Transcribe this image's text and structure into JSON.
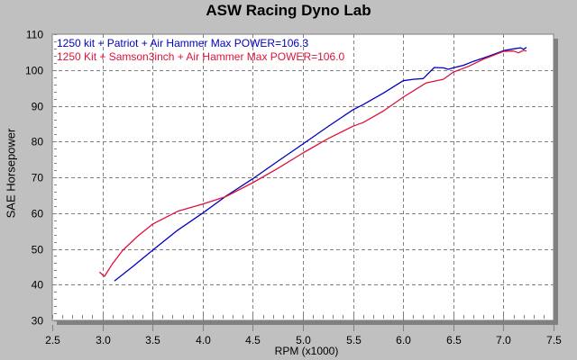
{
  "chart_data": {
    "type": "line",
    "title": "ASW Racing Dyno Lab",
    "xlabel": "RPM (x1000)",
    "ylabel": "SAE Horsepower",
    "xlim": [
      2.5,
      7.5
    ],
    "ylim": [
      30,
      110
    ],
    "xticks": [
      "2.5",
      "3.0",
      "3.5",
      "4.0",
      "4.5",
      "5.0",
      "5.5",
      "6.0",
      "6.5",
      "7.0",
      "7.5"
    ],
    "yticks": [
      "30",
      "40",
      "50",
      "60",
      "70",
      "80",
      "90",
      "100",
      "110"
    ],
    "grid": true,
    "legend_position": "top-left",
    "series": [
      {
        "name": "1250 kit + Patriot + Air Hammer",
        "legend_label": "1250 kit + Patriot + Air Hammer  Max POWER=106.3",
        "max_power": 106.3,
        "color": "#0000c0",
        "x": [
          3.12,
          3.3,
          3.5,
          3.75,
          4.0,
          4.23,
          4.5,
          4.75,
          5.0,
          5.25,
          5.5,
          5.6,
          5.8,
          6.0,
          6.1,
          6.2,
          6.31,
          6.4,
          6.45,
          6.5,
          6.6,
          6.7,
          6.85,
          7.0,
          7.1,
          7.17,
          7.2,
          7.23
        ],
        "y": [
          41.0,
          45.0,
          49.6,
          55.2,
          60.0,
          64.7,
          69.6,
          74.5,
          79.3,
          84.2,
          88.9,
          90.3,
          93.5,
          97.0,
          97.4,
          97.6,
          100.7,
          100.6,
          100.2,
          100.6,
          101.3,
          102.4,
          103.8,
          105.4,
          105.9,
          106.2,
          105.8,
          106.3
        ]
      },
      {
        "name": "1250 Kit + Samson3inch + Air Hammer",
        "legend_label": "1250 Kit + Samson3inch + Air Hammer  Max POWER=106.0",
        "max_power": 106.0,
        "color": "#e0103c",
        "x": [
          2.97,
          3.02,
          3.1,
          3.2,
          3.35,
          3.5,
          3.75,
          4.0,
          4.23,
          4.5,
          4.75,
          5.0,
          5.25,
          5.5,
          5.6,
          5.8,
          6.0,
          6.23,
          6.4,
          6.5,
          6.65,
          6.8,
          7.0,
          7.1,
          7.15,
          7.2,
          7.23
        ],
        "y": [
          43.5,
          42.3,
          45.8,
          49.5,
          53.5,
          56.9,
          60.5,
          62.5,
          64.6,
          68.5,
          72.5,
          76.8,
          80.8,
          84.3,
          85.3,
          88.5,
          92.4,
          96.4,
          97.4,
          99.4,
          101.0,
          103.0,
          105.2,
          105.3,
          104.8,
          105.5,
          105.3
        ]
      }
    ]
  }
}
